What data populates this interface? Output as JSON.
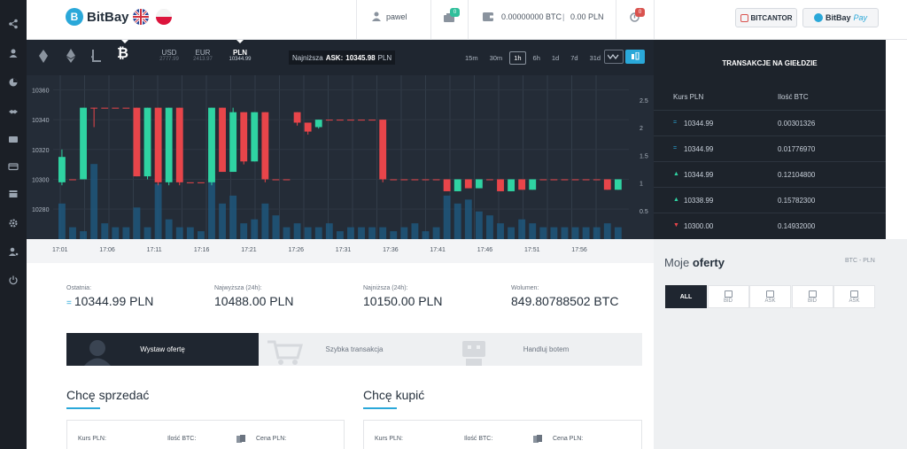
{
  "app": {
    "logo_text": "BitBay"
  },
  "header": {
    "username": "pawel",
    "notif_count": "0",
    "wallet_btc": "0.00000000 BTC",
    "wallet_pln": "0.00 PLN",
    "alert_count": "0",
    "bitcantor_label": "BITCANTOR",
    "bitbay_pay_main": "BitBay",
    "bitbay_pay_suffix": "Pay"
  },
  "currencies": [
    {
      "code": "USD",
      "price": "2777.99"
    },
    {
      "code": "EUR",
      "price": "2413.97"
    },
    {
      "code": "PLN",
      "price": "10344.99"
    }
  ],
  "ask": {
    "label": "Najniższa",
    "ask_label": "ASK:",
    "value": "10345.98",
    "unit": "PLN"
  },
  "timeframes": [
    "15m",
    "30m",
    "1h",
    "6h",
    "1d",
    "7d",
    "31d"
  ],
  "active_timeframe": "1h",
  "chart_data": {
    "type": "candlestick",
    "y_left_ticks": [
      "10360",
      "10340",
      "10320",
      "10300",
      "10280"
    ],
    "y_right_ticks": [
      "2.5",
      "2",
      "1.5",
      "1",
      "0.5"
    ],
    "x_ticks": [
      "17:01",
      "17:06",
      "17:11",
      "17:16",
      "17:21",
      "17:26",
      "17:31",
      "17:36",
      "17:41",
      "17:46",
      "17:51",
      "17:56"
    ],
    "ylim": [
      10270,
      10365
    ],
    "candles": [
      {
        "open": 10298,
        "close": 10315,
        "high": 10320,
        "low": 10296
      },
      {
        "open": 10300,
        "close": 10300,
        "high": 10300,
        "low": 10300
      },
      {
        "open": 10300,
        "close": 10348,
        "high": 10348,
        "low": 10300
      },
      {
        "open": 10348,
        "close": 10348,
        "high": 10348,
        "low": 10335
      },
      {
        "open": 10348,
        "close": 10348,
        "high": 10348,
        "low": 10348
      },
      {
        "open": 10348,
        "close": 10348,
        "high": 10348,
        "low": 10348
      },
      {
        "open": 10348,
        "close": 10348,
        "high": 10348,
        "low": 10348
      },
      {
        "open": 10348,
        "close": 10302,
        "high": 10348,
        "low": 10302
      },
      {
        "open": 10302,
        "close": 10348,
        "high": 10348,
        "low": 10300
      },
      {
        "open": 10348,
        "close": 10298,
        "high": 10348,
        "low": 10296
      },
      {
        "open": 10298,
        "close": 10348,
        "high": 10348,
        "low": 10296
      },
      {
        "open": 10348,
        "close": 10298,
        "high": 10348,
        "low": 10296
      },
      {
        "open": 10298,
        "close": 10298,
        "high": 10298,
        "low": 10298
      },
      {
        "open": 10298,
        "close": 10298,
        "high": 10298,
        "low": 10298
      },
      {
        "open": 10298,
        "close": 10348,
        "high": 10348,
        "low": 10296
      },
      {
        "open": 10348,
        "close": 10305,
        "high": 10348,
        "low": 10305
      },
      {
        "open": 10305,
        "close": 10345,
        "high": 10348,
        "low": 10305
      },
      {
        "open": 10345,
        "close": 10312,
        "high": 10345,
        "low": 10310
      },
      {
        "open": 10312,
        "close": 10345,
        "high": 10345,
        "low": 10312
      },
      {
        "open": 10345,
        "close": 10300,
        "high": 10345,
        "low": 10298
      },
      {
        "open": 10300,
        "close": 10300,
        "high": 10300,
        "low": 10300
      },
      {
        "open": 10300,
        "close": 10300,
        "high": 10300,
        "low": 10300
      },
      {
        "open": 10345,
        "close": 10338,
        "high": 10345,
        "low": 10336
      },
      {
        "open": 10338,
        "close": 10332,
        "high": 10338,
        "low": 10330
      },
      {
        "open": 10335,
        "close": 10340,
        "high": 10340,
        "low": 10334
      },
      {
        "open": 10340,
        "close": 10340,
        "high": 10340,
        "low": 10340
      },
      {
        "open": 10340,
        "close": 10340,
        "high": 10340,
        "low": 10340
      },
      {
        "open": 10340,
        "close": 10340,
        "high": 10340,
        "low": 10340
      },
      {
        "open": 10340,
        "close": 10340,
        "high": 10340,
        "low": 10340
      },
      {
        "open": 10340,
        "close": 10340,
        "high": 10340,
        "low": 10340
      },
      {
        "open": 10340,
        "close": 10300,
        "high": 10340,
        "low": 10298
      },
      {
        "open": 10300,
        "close": 10300,
        "high": 10300,
        "low": 10300
      },
      {
        "open": 10300,
        "close": 10300,
        "high": 10300,
        "low": 10300
      },
      {
        "open": 10300,
        "close": 10300,
        "high": 10300,
        "low": 10300
      },
      {
        "open": 10300,
        "close": 10300,
        "high": 10300,
        "low": 10300
      },
      {
        "open": 10300,
        "close": 10300,
        "high": 10300,
        "low": 10300
      },
      {
        "open": 10300,
        "close": 10292,
        "high": 10300,
        "low": 10292
      },
      {
        "open": 10292,
        "close": 10300,
        "high": 10300,
        "low": 10292
      },
      {
        "open": 10300,
        "close": 10294,
        "high": 10300,
        "low": 10294
      },
      {
        "open": 10294,
        "close": 10300,
        "high": 10300,
        "low": 10294
      },
      {
        "open": 10300,
        "close": 10300,
        "high": 10300,
        "low": 10300
      },
      {
        "open": 10300,
        "close": 10292,
        "high": 10300,
        "low": 10292
      },
      {
        "open": 10292,
        "close": 10300,
        "high": 10300,
        "low": 10292
      },
      {
        "open": 10300,
        "close": 10293,
        "high": 10300,
        "low": 10293
      },
      {
        "open": 10293,
        "close": 10300,
        "high": 10300,
        "low": 10293
      },
      {
        "open": 10300,
        "close": 10300,
        "high": 10300,
        "low": 10300
      },
      {
        "open": 10300,
        "close": 10300,
        "high": 10300,
        "low": 10300
      },
      {
        "open": 10300,
        "close": 10300,
        "high": 10300,
        "low": 10300
      },
      {
        "open": 10300,
        "close": 10300,
        "high": 10300,
        "low": 10300
      },
      {
        "open": 10300,
        "close": 10300,
        "high": 10300,
        "low": 10300
      },
      {
        "open": 10300,
        "close": 10300,
        "high": 10300,
        "low": 10300
      },
      {
        "open": 10300,
        "close": 10293,
        "high": 10300,
        "low": 10293
      },
      {
        "open": 10293,
        "close": 10300,
        "high": 10300,
        "low": 10293
      }
    ],
    "volumes": [
      0.9,
      0.3,
      0.2,
      1.9,
      0.4,
      0.3,
      0.3,
      0.8,
      0.3,
      1.4,
      0.5,
      0.3,
      0.3,
      0.2,
      1.6,
      0.9,
      1.1,
      0.4,
      0.5,
      0.9,
      0.6,
      0.3,
      0.4,
      0.3,
      0.3,
      0.4,
      0.2,
      0.3,
      0.3,
      0.3,
      0.3,
      0.2,
      0.3,
      0.4,
      0.2,
      0.3,
      1.1,
      0.9,
      1.0,
      0.7,
      0.6,
      0.4,
      0.3,
      0.5,
      0.4,
      0.3,
      0.3,
      0.3,
      0.3,
      0.3,
      0.3,
      0.4,
      0.3
    ]
  },
  "trades": {
    "title": "TRANSAKCJE NA GIEŁDZIE",
    "col_rate": "Kurs PLN",
    "col_amount": "Ilość BTC",
    "rows": [
      {
        "dir": "=",
        "rate": "10344.99",
        "amount": "0.00301326"
      },
      {
        "dir": "=",
        "rate": "10344.99",
        "amount": "0.01776970"
      },
      {
        "dir": "▲",
        "rate": "10344.99",
        "amount": "0.12104800"
      },
      {
        "dir": "▲",
        "rate": "10338.99",
        "amount": "0.15782300"
      },
      {
        "dir": "▼",
        "rate": "10300.00",
        "amount": "0.14932000"
      }
    ]
  },
  "stats": [
    {
      "label": "Ostatnia:",
      "prefix": "=",
      "value": "10344.99 PLN"
    },
    {
      "label": "Najwyższa (24h):",
      "prefix": "",
      "value": "10488.00 PLN"
    },
    {
      "label": "Najniższa (24h):",
      "prefix": "",
      "value": "10150.00 PLN"
    },
    {
      "label": "Wolumen:",
      "prefix": "",
      "value": "849.80788502 BTC"
    }
  ],
  "action_tabs": [
    "Wystaw ofertę",
    "Szybka transakcja",
    "Handluj botem"
  ],
  "sell": {
    "title": "Chcę sprzedać",
    "rate": "Kurs PLN:",
    "amount": "Ilość BTC:",
    "price": "Cena PLN:"
  },
  "buy": {
    "title": "Chcę kupić",
    "rate": "Kurs PLN:",
    "amount": "Ilość BTC:",
    "price": "Cena PLN:"
  },
  "my_offers": {
    "title_light": "Moje",
    "title_bold": "oferty",
    "pair": "BTC - PLN",
    "filters": [
      "ALL",
      "BID",
      "ASK",
      "BID",
      "ASK"
    ]
  },
  "colors": {
    "accent": "#2aa8d9",
    "up": "#2fd3a2",
    "down": "#e8454a",
    "dark": "#1f2630"
  }
}
